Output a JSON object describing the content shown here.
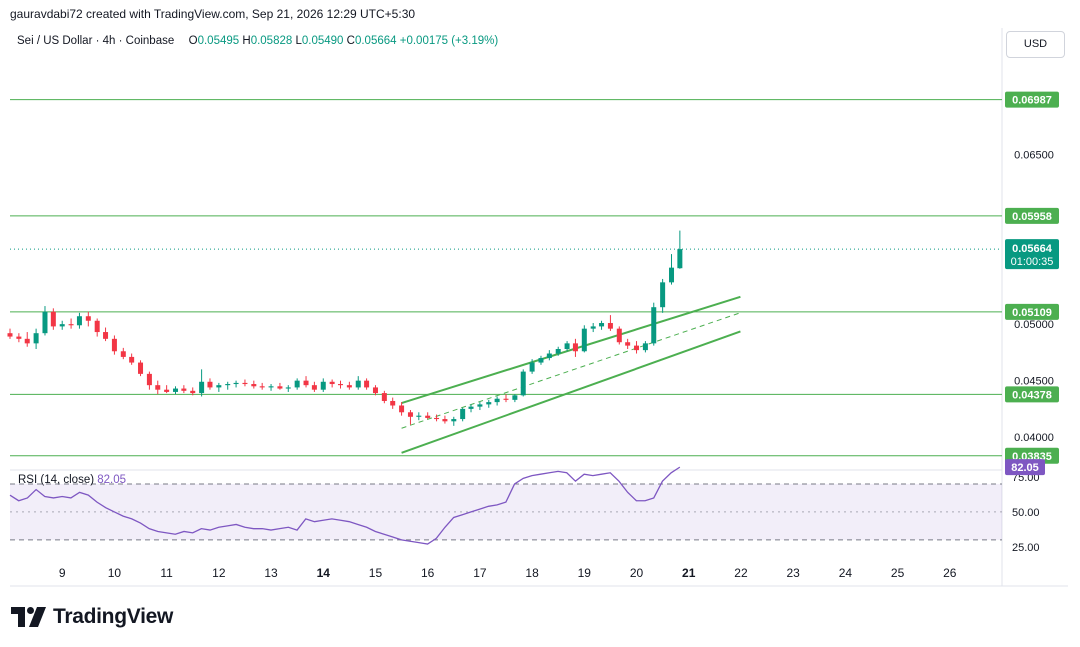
{
  "caption": "gauravdabi72 created with TradingView.com, Sep 21, 2026 12:29 UTC+5:30",
  "currency_button": "USD",
  "brand": "TradingView",
  "colors": {
    "up": "#089981",
    "down": "#f23645",
    "level": "#4caf50",
    "rsi": "#7e57c2",
    "channel": "#4caf50"
  },
  "chart_data": {
    "type": "candlestick",
    "symbol": "Sei / US Dollar · 4h · Coinbase",
    "ohlc": {
      "open_label": "O",
      "open": "0.05495",
      "high_label": "H",
      "high": "0.05828",
      "low_label": "L",
      "low": "0.05490",
      "close_label": "C",
      "close": "0.05664",
      "change": "+0.00175 (+3.19%)"
    },
    "last_price": "0.05664",
    "countdown": "01:00:35",
    "y_ticks": [
      "0.06500",
      "0.05000",
      "0.04500",
      "0.04000"
    ],
    "x_ticks": [
      "9",
      "10",
      "11",
      "12",
      "13",
      "14",
      "15",
      "16",
      "17",
      "18",
      "19",
      "20",
      "21",
      "22",
      "23",
      "24",
      "25",
      "26"
    ],
    "x_ticks_bold": [
      "14",
      "21"
    ],
    "x_range": [
      8.0,
      27.0
    ],
    "y_range": [
      0.0378,
      0.0732
    ],
    "horizontal_levels": [
      {
        "value": 0.06987,
        "label": "0.06987"
      },
      {
        "value": 0.05958,
        "label": "0.05958"
      },
      {
        "value": 0.05109,
        "label": "0.05109"
      },
      {
        "value": 0.04378,
        "label": "0.04378"
      },
      {
        "value": 0.03835,
        "label": "0.03835"
      }
    ],
    "channel": {
      "upper": [
        [
          15.5,
          0.04302
        ],
        [
          21.99,
          0.05242
        ]
      ],
      "middle": [
        [
          15.5,
          0.04079
        ],
        [
          21.99,
          0.05101
        ]
      ],
      "lower": [
        [
          15.5,
          0.03861
        ],
        [
          21.99,
          0.04935
        ]
      ]
    },
    "candles": [
      [
        8.0,
        0.0492,
        0.0496,
        0.0487,
        0.0489
      ],
      [
        8.17,
        0.0489,
        0.0492,
        0.0484,
        0.0487
      ],
      [
        8.33,
        0.0487,
        0.0493,
        0.048,
        0.0483
      ],
      [
        8.5,
        0.0483,
        0.0496,
        0.0478,
        0.0492
      ],
      [
        8.67,
        0.0492,
        0.0516,
        0.049,
        0.0511
      ],
      [
        8.83,
        0.0511,
        0.0514,
        0.0495,
        0.0498
      ],
      [
        9.0,
        0.0498,
        0.0503,
        0.0495,
        0.05
      ],
      [
        9.17,
        0.05,
        0.0505,
        0.0496,
        0.0499
      ],
      [
        9.33,
        0.0499,
        0.051,
        0.0496,
        0.0507
      ],
      [
        9.5,
        0.0507,
        0.0511,
        0.0498,
        0.0503
      ],
      [
        9.67,
        0.0503,
        0.0505,
        0.0489,
        0.0493
      ],
      [
        9.83,
        0.0493,
        0.0497,
        0.0485,
        0.0487
      ],
      [
        10.0,
        0.0487,
        0.049,
        0.0473,
        0.0476
      ],
      [
        10.17,
        0.0476,
        0.0479,
        0.0469,
        0.0471
      ],
      [
        10.33,
        0.0471,
        0.0474,
        0.0464,
        0.0466
      ],
      [
        10.5,
        0.0466,
        0.0468,
        0.0454,
        0.0456
      ],
      [
        10.67,
        0.0456,
        0.0458,
        0.0442,
        0.0446
      ],
      [
        10.83,
        0.0446,
        0.045,
        0.0438,
        0.0442
      ],
      [
        11.0,
        0.0442,
        0.0446,
        0.0439,
        0.044
      ],
      [
        11.17,
        0.044,
        0.0445,
        0.0438,
        0.0443
      ],
      [
        11.33,
        0.0443,
        0.0446,
        0.0439,
        0.0441
      ],
      [
        11.5,
        0.0441,
        0.0444,
        0.0437,
        0.0439
      ],
      [
        11.67,
        0.0439,
        0.046,
        0.0436,
        0.0449
      ],
      [
        11.83,
        0.0449,
        0.0452,
        0.0442,
        0.0444
      ],
      [
        12.0,
        0.0444,
        0.0448,
        0.044,
        0.0446
      ],
      [
        12.17,
        0.0446,
        0.0449,
        0.0442,
        0.0447
      ],
      [
        12.33,
        0.0447,
        0.045,
        0.0444,
        0.0448
      ],
      [
        12.5,
        0.0448,
        0.0451,
        0.0445,
        0.0447
      ],
      [
        12.67,
        0.0447,
        0.045,
        0.0443,
        0.0445
      ],
      [
        12.83,
        0.0445,
        0.0448,
        0.0442,
        0.0444
      ],
      [
        13.0,
        0.0444,
        0.0447,
        0.0441,
        0.0445
      ],
      [
        13.17,
        0.0445,
        0.0448,
        0.0442,
        0.0443
      ],
      [
        13.33,
        0.0443,
        0.0446,
        0.044,
        0.0444
      ],
      [
        13.5,
        0.0444,
        0.0452,
        0.0442,
        0.045
      ],
      [
        13.67,
        0.045,
        0.0454,
        0.0444,
        0.0446
      ],
      [
        13.83,
        0.0446,
        0.0449,
        0.044,
        0.0442
      ],
      [
        14.0,
        0.0442,
        0.0452,
        0.044,
        0.0449
      ],
      [
        14.17,
        0.0449,
        0.0451,
        0.0444,
        0.0447
      ],
      [
        14.33,
        0.0447,
        0.045,
        0.0443,
        0.0446
      ],
      [
        14.5,
        0.0446,
        0.0449,
        0.0442,
        0.0444
      ],
      [
        14.67,
        0.0444,
        0.0454,
        0.0442,
        0.045
      ],
      [
        14.83,
        0.045,
        0.0452,
        0.0442,
        0.0444
      ],
      [
        15.0,
        0.0444,
        0.0446,
        0.0437,
        0.0439
      ],
      [
        15.17,
        0.0439,
        0.0441,
        0.043,
        0.0432
      ],
      [
        15.33,
        0.0432,
        0.0435,
        0.0425,
        0.0428
      ],
      [
        15.5,
        0.0428,
        0.0431,
        0.0419,
        0.0422
      ],
      [
        15.67,
        0.0422,
        0.0424,
        0.0411,
        0.0418
      ],
      [
        15.83,
        0.0418,
        0.0422,
        0.0415,
        0.0419
      ],
      [
        16.0,
        0.0419,
        0.0422,
        0.0416,
        0.0417
      ],
      [
        16.17,
        0.0417,
        0.042,
        0.0414,
        0.0416
      ],
      [
        16.33,
        0.0416,
        0.0419,
        0.0412,
        0.0414
      ],
      [
        16.5,
        0.0414,
        0.0418,
        0.041,
        0.0416
      ],
      [
        16.67,
        0.0416,
        0.0426,
        0.0414,
        0.0425
      ],
      [
        16.83,
        0.0425,
        0.0429,
        0.0422,
        0.0427
      ],
      [
        17.0,
        0.0427,
        0.0431,
        0.0424,
        0.0429
      ],
      [
        17.17,
        0.0429,
        0.0433,
        0.0426,
        0.0431
      ],
      [
        17.33,
        0.0431,
        0.0436,
        0.0428,
        0.0434
      ],
      [
        17.5,
        0.0434,
        0.0438,
        0.0431,
        0.0433
      ],
      [
        17.67,
        0.0433,
        0.0438,
        0.0431,
        0.0437
      ],
      [
        17.83,
        0.0437,
        0.046,
        0.0436,
        0.0458
      ],
      [
        18.0,
        0.0458,
        0.0469,
        0.0456,
        0.0466
      ],
      [
        18.17,
        0.0466,
        0.0472,
        0.0464,
        0.047
      ],
      [
        18.33,
        0.047,
        0.0477,
        0.0468,
        0.0474
      ],
      [
        18.5,
        0.0474,
        0.048,
        0.0472,
        0.0478
      ],
      [
        18.67,
        0.0478,
        0.0485,
        0.0476,
        0.0483
      ],
      [
        18.83,
        0.0483,
        0.0487,
        0.0471,
        0.0476
      ],
      [
        19.0,
        0.0476,
        0.0499,
        0.0475,
        0.0496
      ],
      [
        19.17,
        0.0496,
        0.0501,
        0.0493,
        0.0498
      ],
      [
        19.33,
        0.0498,
        0.0503,
        0.0495,
        0.0501
      ],
      [
        19.5,
        0.0501,
        0.0508,
        0.0494,
        0.0496
      ],
      [
        19.67,
        0.0496,
        0.0498,
        0.0482,
        0.0484
      ],
      [
        19.83,
        0.0484,
        0.0487,
        0.0478,
        0.0481
      ],
      [
        20.0,
        0.0481,
        0.0485,
        0.0474,
        0.0477
      ],
      [
        20.17,
        0.0477,
        0.0485,
        0.0475,
        0.0483
      ],
      [
        20.33,
        0.0483,
        0.0519,
        0.0481,
        0.0515
      ],
      [
        20.5,
        0.0515,
        0.054,
        0.051,
        0.0537
      ],
      [
        20.67,
        0.0537,
        0.0562,
        0.0535,
        0.055
      ],
      [
        20.83,
        0.05495,
        0.05828,
        0.0549,
        0.05664
      ]
    ],
    "rsi": {
      "label": "RSI (14, close)",
      "value": "82.05",
      "upper_band": 70,
      "middle_band": 50,
      "lower_band": 30,
      "y_ticks": [
        "75.00",
        "50.00",
        "25.00"
      ],
      "y_range": [
        17,
        80
      ],
      "values": [
        62,
        58,
        60,
        66,
        61,
        60,
        61,
        60,
        64,
        62,
        57,
        53,
        50,
        47,
        45,
        42,
        38,
        36,
        35,
        34,
        36,
        35,
        38,
        37,
        39,
        40,
        41,
        39,
        38,
        38,
        37,
        38,
        39,
        37,
        45,
        43,
        44,
        45,
        44,
        43,
        41,
        39,
        36,
        34,
        32,
        30,
        29,
        28,
        27,
        31,
        39,
        46,
        48,
        50,
        52,
        54,
        55,
        57,
        70,
        74,
        76,
        77,
        78,
        79,
        78,
        72,
        77,
        76,
        77,
        78,
        72,
        64,
        58,
        58,
        60,
        72,
        78,
        82.05
      ]
    }
  }
}
